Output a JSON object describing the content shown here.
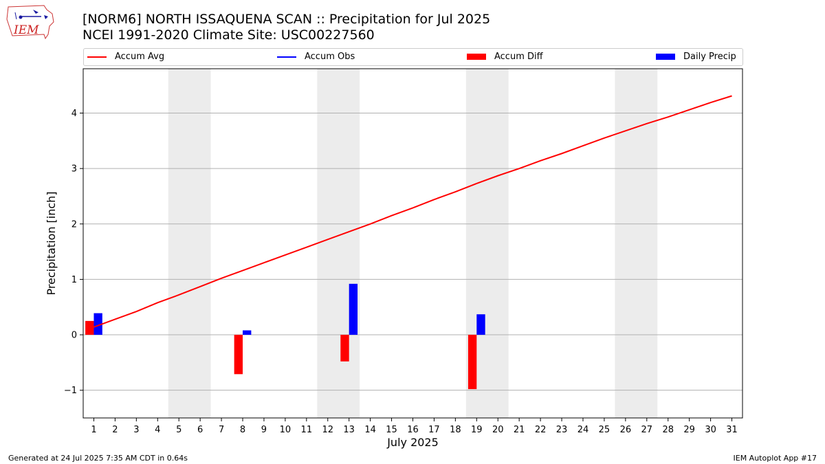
{
  "logo": {
    "text": "IEM"
  },
  "header": {
    "title_line1": "[NORM6] NORTH ISSAQUENA SCAN :: Precipitation for Jul 2025",
    "title_line2": "NCEI 1991-2020 Climate Site: USC00227560"
  },
  "legend": [
    {
      "label": "Accum Avg",
      "kind": "line",
      "color": "#ff0000"
    },
    {
      "label": "Accum Obs",
      "kind": "line",
      "color": "#0000ff"
    },
    {
      "label": "Accum Diff",
      "kind": "bar",
      "color": "#ff0000"
    },
    {
      "label": "Daily Precip",
      "kind": "bar",
      "color": "#0000ff"
    }
  ],
  "footer": {
    "left": "Generated at 24 Jul 2025 7:35 AM CDT in 0.64s",
    "right": "IEM Autoplot App #17"
  },
  "chart_data": {
    "type": "bar",
    "xlabel": "July 2025",
    "ylabel": "Precipitation [inch]",
    "xlim": [
      0.5,
      31.5
    ],
    "ylim": [
      -1.5,
      4.8
    ],
    "yticks": [
      -1,
      0,
      1,
      2,
      3,
      4
    ],
    "ytick_labels": [
      "−1",
      "0",
      "1",
      "2",
      "3",
      "4"
    ],
    "categories": [
      "1",
      "2",
      "3",
      "4",
      "5",
      "6",
      "7",
      "8",
      "9",
      "10",
      "11",
      "12",
      "13",
      "14",
      "15",
      "16",
      "17",
      "18",
      "19",
      "20",
      "21",
      "22",
      "23",
      "24",
      "25",
      "26",
      "27",
      "28",
      "29",
      "30",
      "31"
    ],
    "grid": "horizontal",
    "legend_position": "top",
    "weekend_shading": [
      [
        4.5,
        6.5
      ],
      [
        11.5,
        13.5
      ],
      [
        18.5,
        20.5
      ],
      [
        25.5,
        27.5
      ]
    ],
    "shading_color": "#ececec",
    "series": [
      {
        "name": "Accum Avg",
        "kind": "line",
        "color": "#ff0000",
        "x": [
          1,
          2,
          3,
          4,
          5,
          6,
          7,
          8,
          9,
          10,
          11,
          12,
          13,
          14,
          15,
          16,
          17,
          18,
          19,
          20,
          21,
          22,
          23,
          24,
          25,
          26,
          27,
          28,
          29,
          30,
          31
        ],
        "values": [
          0.14,
          0.28,
          0.42,
          0.58,
          0.72,
          0.87,
          1.02,
          1.16,
          1.3,
          1.44,
          1.58,
          1.72,
          1.86,
          2.0,
          2.15,
          2.29,
          2.44,
          2.58,
          2.73,
          2.87,
          3.0,
          3.14,
          3.27,
          3.41,
          3.55,
          3.68,
          3.81,
          3.93,
          4.06,
          4.19,
          4.31
        ]
      },
      {
        "name": "Accum Diff",
        "kind": "bar",
        "color": "#ff0000",
        "x": [
          1,
          8,
          13,
          19
        ],
        "values": [
          0.25,
          -0.71,
          -0.48,
          -0.98
        ]
      },
      {
        "name": "Daily Precip",
        "kind": "bar",
        "color": "#0000ff",
        "x": [
          1,
          8,
          13,
          19
        ],
        "values": [
          0.39,
          0.08,
          0.92,
          0.37
        ]
      }
    ]
  }
}
